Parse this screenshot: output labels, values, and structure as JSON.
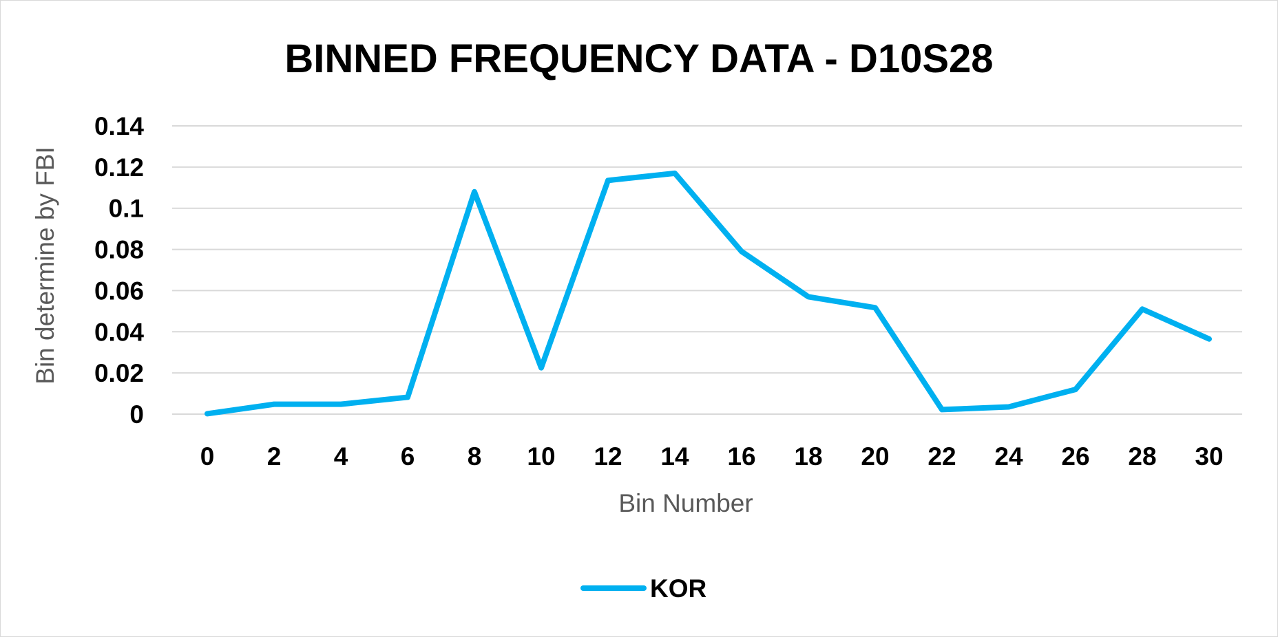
{
  "chart_data": {
    "type": "line",
    "title": "BINNED FREQUENCY DATA - D10S28",
    "xlabel": "Bin Number",
    "ylabel": "Bin determine by FBI",
    "x": [
      0,
      2,
      4,
      6,
      8,
      10,
      12,
      14,
      16,
      18,
      20,
      22,
      24,
      26,
      28,
      30
    ],
    "x_tick_labels": [
      "0",
      "2",
      "4",
      "6",
      "8",
      "10",
      "12",
      "14",
      "16",
      "18",
      "20",
      "22",
      "24",
      "26",
      "28",
      "30"
    ],
    "y_tick_labels": [
      "0",
      "0.02",
      "0.04",
      "0.06",
      "0.08",
      "0.1",
      "0.12",
      "0.14"
    ],
    "y_ticks": [
      0,
      0.02,
      0.04,
      0.06,
      0.08,
      0.1,
      0.12,
      0.14
    ],
    "ylim": [
      0,
      0.14
    ],
    "grid": true,
    "legend_position": "bottom",
    "series": [
      {
        "name": "KOR",
        "color": "#00b0f0",
        "values": [
          0.0002,
          0.0048,
          0.0048,
          0.0082,
          0.108,
          0.0225,
          0.1135,
          0.117,
          0.079,
          0.057,
          0.0517,
          0.0022,
          0.0035,
          0.012,
          0.051,
          0.0365
        ]
      }
    ]
  }
}
